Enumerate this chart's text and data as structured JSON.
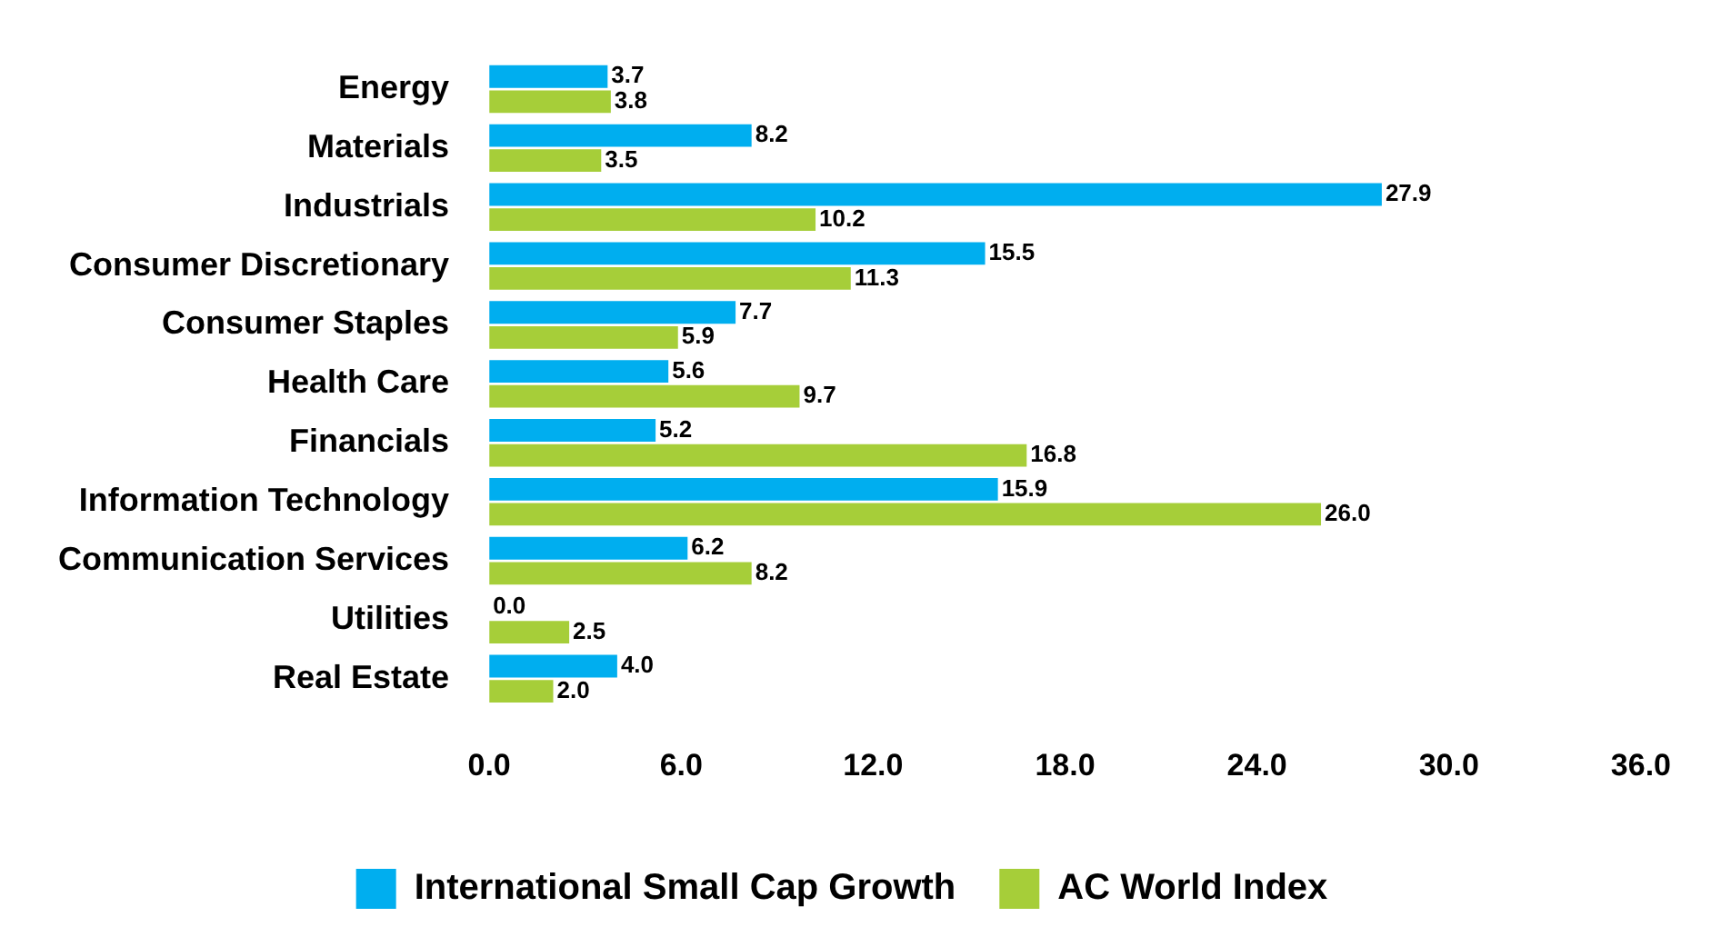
{
  "chart_data": {
    "type": "bar",
    "orientation": "horizontal",
    "categories": [
      "Energy",
      "Materials",
      "Industrials",
      "Consumer Discretionary",
      "Consumer Staples",
      "Health Care",
      "Financials",
      "Information Technology",
      "Communication Services",
      "Utilities",
      "Real Estate"
    ],
    "series": [
      {
        "name": "International Small Cap Growth",
        "color": "#00aeef",
        "values": [
          3.7,
          8.2,
          27.9,
          15.5,
          7.7,
          5.6,
          5.2,
          15.9,
          6.2,
          0.0,
          4.0
        ],
        "value_labels": [
          "3.7",
          "8.2",
          "27.9",
          "15.5",
          "7.7",
          "5.6",
          "5.2",
          "15.9",
          "6.2",
          "0.0",
          "4.0"
        ]
      },
      {
        "name": "AC World Index",
        "color": "#a6ce39",
        "values": [
          3.8,
          3.5,
          10.2,
          11.3,
          5.9,
          9.7,
          16.8,
          26.0,
          8.2,
          2.5,
          2.0
        ],
        "value_labels": [
          "3.8",
          "3.5",
          "10.2",
          "11.3",
          "5.9",
          "9.7",
          "16.8",
          "26.0",
          "8.2",
          "2.5",
          "2.0"
        ]
      }
    ],
    "xlim": [
      0,
      36
    ],
    "xticks": [
      {
        "value": 0,
        "label": "0.0"
      },
      {
        "value": 6,
        "label": "6.0"
      },
      {
        "value": 12,
        "label": "12.0"
      },
      {
        "value": 18,
        "label": "18.0"
      },
      {
        "value": 24,
        "label": "24.0"
      },
      {
        "value": 30,
        "label": "30.0"
      },
      {
        "value": 36,
        "label": "36.0"
      }
    ],
    "grid": false,
    "legend": "bottom"
  }
}
